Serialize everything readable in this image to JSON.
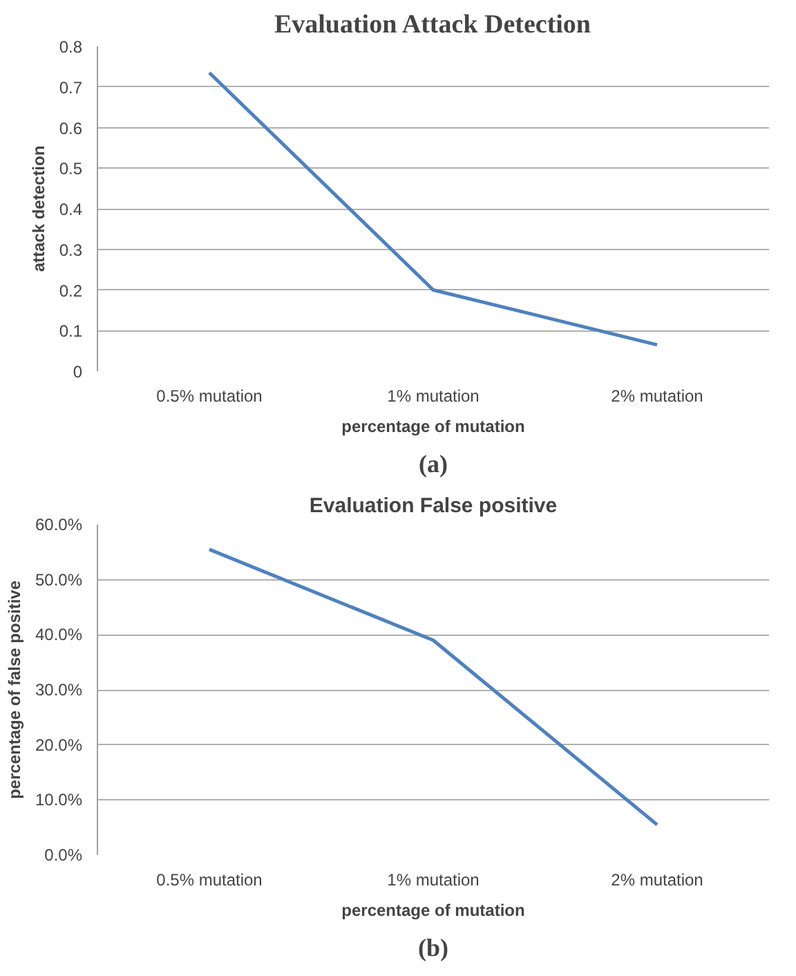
{
  "chart_data": [
    {
      "type": "line",
      "title": "Evaluation Attack Detection",
      "xlabel": "percentage of mutation",
      "ylabel": "attack detection",
      "categories": [
        "0.5% mutation",
        "1% mutation",
        "2% mutation"
      ],
      "series": [
        {
          "color": "#4f81bd",
          "values": [
            0.735,
            0.2,
            0.065
          ]
        }
      ],
      "ylim": [
        0,
        0.8
      ],
      "yticks": [
        {
          "value": 0,
          "label": "0"
        },
        0.1,
        0.2,
        0.3,
        0.4,
        0.5,
        0.6,
        0.7,
        0.8
      ],
      "grid": "y",
      "annotations": [
        "(a)"
      ]
    },
    {
      "type": "line",
      "title": "Evaluation False positive",
      "xlabel": "percentage of mutation",
      "ylabel": "percentage of false positive",
      "categories": [
        "0.5% mutation",
        "1% mutation",
        "2% mutation"
      ],
      "series": [
        {
          "color": "#4f81bd",
          "values": [
            55.5,
            39,
            5.5
          ]
        }
      ],
      "ylim": [
        0,
        60
      ],
      "yticks": [
        {
          "value": 0,
          "label": "0.0%"
        },
        {
          "value": 10,
          "label": "10.0%"
        },
        {
          "value": 20,
          "label": "20.0%"
        },
        {
          "value": 30,
          "label": "30.0%"
        },
        {
          "value": 40,
          "label": "40.0%"
        },
        {
          "value": 50,
          "label": "50.0%"
        },
        {
          "value": 60,
          "label": "60.0%"
        }
      ],
      "grid": "y",
      "annotations": [
        "(b)"
      ]
    }
  ]
}
